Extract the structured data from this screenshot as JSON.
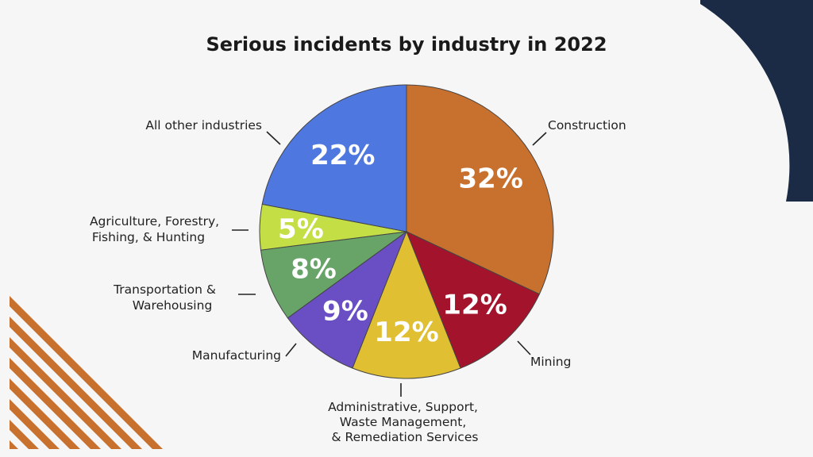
{
  "chart_data": {
    "type": "pie",
    "title": "Serious incidents by industry in 2022",
    "slices": [
      {
        "label": "Construction",
        "value": 32,
        "display": "32%",
        "color": "#c8702e"
      },
      {
        "label": "Mining",
        "value": 12,
        "display": "12%",
        "color": "#a3132b"
      },
      {
        "label": "Administrative, Support, Waste Management, & Remediation Services",
        "lines": [
          "Administrative, Support,",
          "Waste Management,",
          "& Remediation Services"
        ],
        "value": 12,
        "display": "12%",
        "color": "#e0bf33"
      },
      {
        "label": "Manufacturing",
        "value": 9,
        "display": "9%",
        "color": "#6a4fc4"
      },
      {
        "label": "Transportation & Warehousing",
        "lines": [
          "Transportation &",
          "Warehousing"
        ],
        "value": 8,
        "display": "8%",
        "color": "#68a368"
      },
      {
        "label": "Agriculture, Forestry, Fishing, & Hunting",
        "lines": [
          "Agriculture, Forestry,",
          "Fishing, & Hunting"
        ],
        "value": 5,
        "display": "5%",
        "color": "#c4df46"
      },
      {
        "label": "All other industries",
        "value": 22,
        "display": "22%",
        "color": "#4e78e0"
      }
    ]
  },
  "decor": {
    "stripe_color": "#c8702e",
    "arc_color": "#1b2a45"
  }
}
